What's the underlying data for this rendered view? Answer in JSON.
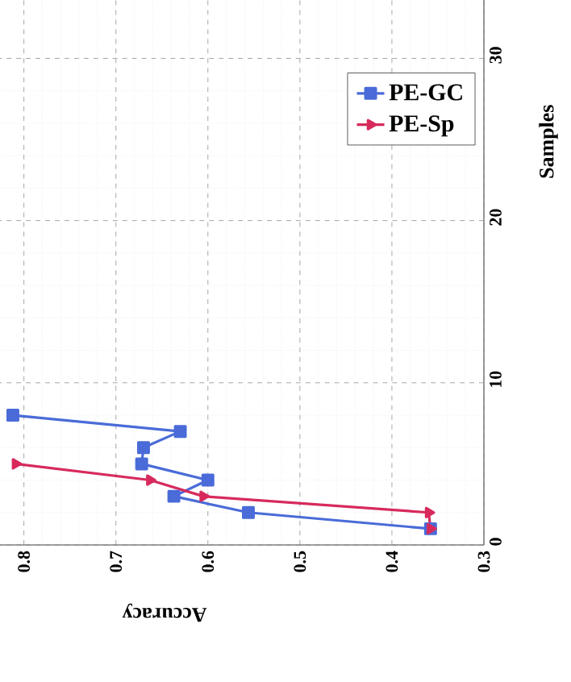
{
  "chart_data": {
    "type": "line",
    "xlabel": "Accuracy",
    "ylabel": "Samples",
    "series": [
      {
        "name": "PE-GC",
        "color": "#4a6bd8",
        "marker": "square",
        "x": [
          0.358,
          0.556,
          0.637,
          0.6,
          0.672,
          0.67,
          0.63,
          0.812
        ],
        "values": [
          1,
          2,
          3,
          4,
          5,
          6,
          7,
          8
        ]
      },
      {
        "name": "PE-Sp",
        "color": "#d72a5c",
        "marker": "triangle",
        "x": [
          0.358,
          0.36,
          0.605,
          0.663,
          0.809
        ],
        "values": [
          1,
          2,
          3,
          4,
          5
        ]
      }
    ],
    "xlim": [
      0.826,
      0.3
    ],
    "ylim": [
      0,
      33.6
    ],
    "xticks": [
      0.3,
      0.4,
      0.5,
      0.6,
      0.7,
      0.8
    ],
    "yticks": [
      0,
      10,
      20,
      30
    ],
    "grid": true,
    "legend": "top right",
    "line_style": "solid"
  }
}
